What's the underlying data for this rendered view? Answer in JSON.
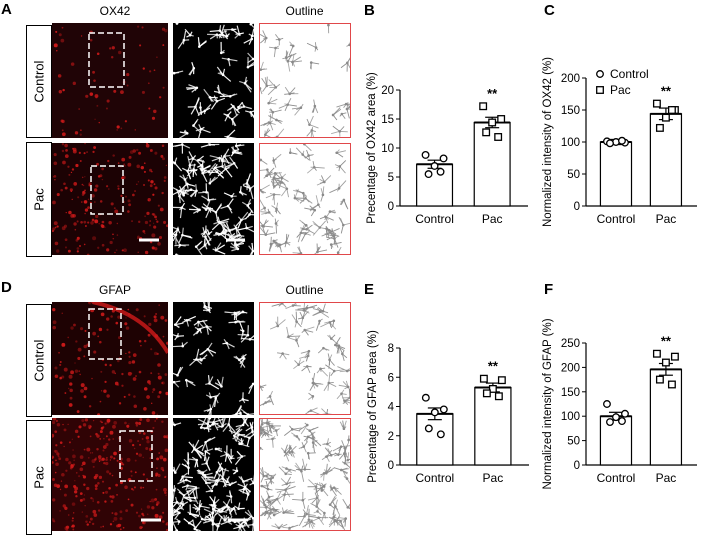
{
  "panels": {
    "A": {
      "letter": "A",
      "stain": "OX42",
      "outline": "Outline",
      "rows": [
        "Control",
        "Pac"
      ]
    },
    "D": {
      "letter": "D",
      "stain": "GFAP",
      "outline": "Outline",
      "rows": [
        "Control",
        "Pac"
      ]
    }
  },
  "colors": {
    "red_stain": "#d11a1a",
    "outline_border": "#e0474a",
    "marker": "#000000"
  },
  "chart_data": [
    {
      "letter": "B",
      "type": "bar",
      "ylabel": "Precentage of OX42 area (%)",
      "categories": [
        "Control",
        "Pac"
      ],
      "values": [
        7.2,
        14.4
      ],
      "errors": [
        0.7,
        0.9
      ],
      "ylim": [
        0,
        20
      ],
      "yticks": [
        0,
        5,
        10,
        15,
        20
      ],
      "significance": {
        "Pac": "**"
      },
      "points": {
        "Control": [
          8.8,
          8.2,
          6.9,
          5.5,
          5.9
        ],
        "Pac": [
          17.2,
          15.0,
          14.4,
          12.7,
          11.9
        ]
      },
      "marker": [
        "circle",
        "square"
      ],
      "legend": null
    },
    {
      "letter": "C",
      "type": "bar",
      "ylabel": "Normalized intensity of OX42 (%)",
      "categories": [
        "Control",
        "Pac"
      ],
      "values": [
        100,
        144
      ],
      "errors": [
        4,
        9
      ],
      "ylim": [
        0,
        200
      ],
      "yticks": [
        0,
        50,
        100,
        150,
        200
      ],
      "significance": {
        "Pac": "**"
      },
      "points": {
        "Control": [
          101,
          99,
          100,
          98,
          102
        ],
        "Pac": [
          160,
          150,
          138,
          122,
          150
        ]
      },
      "marker": [
        "circle",
        "square"
      ],
      "legend": [
        "Control",
        "Pac"
      ]
    },
    {
      "letter": "E",
      "type": "bar",
      "ylabel": "Precentage of GFAP area (%)",
      "categories": [
        "Control",
        "Pac"
      ],
      "values": [
        3.5,
        5.3
      ],
      "errors": [
        0.4,
        0.3
      ],
      "ylim": [
        0,
        8
      ],
      "yticks": [
        0,
        2,
        4,
        6,
        8
      ],
      "significance": {
        "Pac": "**"
      },
      "points": {
        "Control": [
          4.6,
          3.8,
          3.6,
          2.5,
          2.1
        ],
        "Pac": [
          5.9,
          5.8,
          5.2,
          4.9,
          4.7
        ]
      },
      "marker": [
        "circle",
        "square"
      ],
      "legend": null
    },
    {
      "letter": "F",
      "type": "bar",
      "ylabel": "Normalized intensity of GFAP (%)",
      "categories": [
        "Control",
        "Pac"
      ],
      "values": [
        100,
        196
      ],
      "errors": [
        8,
        12
      ],
      "ylim": [
        0,
        250
      ],
      "yticks": [
        0,
        50,
        100,
        150,
        200,
        250
      ],
      "significance": {
        "Pac": "**"
      },
      "points": {
        "Control": [
          125,
          105,
          98,
          88,
          90
        ],
        "Pac": [
          228,
          222,
          210,
          175,
          165
        ]
      },
      "marker": [
        "circle",
        "square"
      ],
      "legend": null
    }
  ]
}
